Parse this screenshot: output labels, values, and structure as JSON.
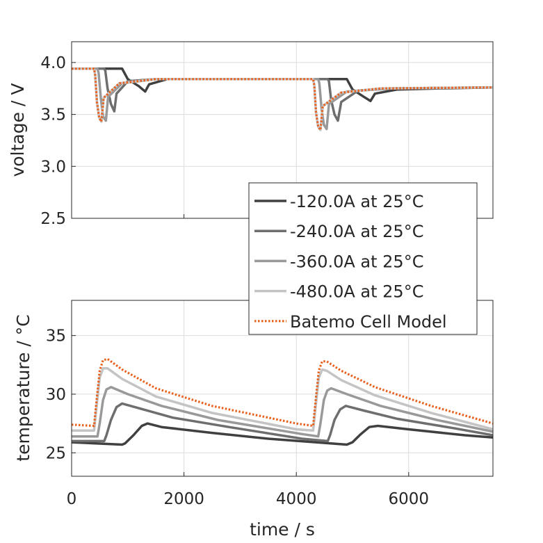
{
  "chart_data": [
    {
      "type": "line",
      "ylabel": "voltage / V",
      "xlim": [
        0,
        7500
      ],
      "ylim": [
        2.5,
        4.2
      ],
      "yticks": [
        "2.5",
        "3.0",
        "3.5",
        "4.0"
      ],
      "grid": true,
      "legend": {
        "placement": "lower-right",
        "entries": [
          {
            "label": "-120.0A at 25°C",
            "color": "#404040",
            "style": "solid"
          },
          {
            "label": "-240.0A at 25°C",
            "color": "#6e6e6e",
            "style": "solid"
          },
          {
            "label": "-360.0A at 25°C",
            "color": "#999999",
            "style": "solid"
          },
          {
            "label": "-480.0A at 25°C",
            "color": "#c4c4c4",
            "style": "solid"
          },
          {
            "label": "Batemo Cell Model",
            "color": "#e8601c",
            "style": "dotted"
          }
        ]
      },
      "series": [
        {
          "name": "-120.0A at 25°C",
          "x": [
            0,
            900,
            920,
            1000,
            1200,
            1310,
            1380,
            1700,
            2500,
            4000,
            4900,
            4920,
            5000,
            5200,
            5320,
            5400,
            5800,
            6500,
            7500
          ],
          "y": [
            3.94,
            3.94,
            3.92,
            3.84,
            3.77,
            3.72,
            3.79,
            3.84,
            3.84,
            3.84,
            3.84,
            3.82,
            3.74,
            3.67,
            3.63,
            3.7,
            3.74,
            3.75,
            3.76
          ]
        },
        {
          "name": "-240.0A at 25°C",
          "x": [
            0,
            580,
            600,
            640,
            700,
            760,
            800,
            1000,
            1500,
            2500,
            4200,
            4560,
            4580,
            4620,
            4680,
            4740,
            4800,
            5100,
            5700,
            7500
          ],
          "y": [
            3.94,
            3.94,
            3.92,
            3.75,
            3.6,
            3.53,
            3.7,
            3.82,
            3.84,
            3.84,
            3.84,
            3.84,
            3.82,
            3.64,
            3.5,
            3.44,
            3.62,
            3.73,
            3.75,
            3.76
          ]
        },
        {
          "name": "-360.0A at 25°C",
          "x": [
            0,
            460,
            480,
            520,
            560,
            610,
            650,
            900,
            1500,
            2500,
            4200,
            4390,
            4410,
            4450,
            4490,
            4540,
            4580,
            4900,
            5600,
            7500
          ],
          "y": [
            3.94,
            3.94,
            3.9,
            3.66,
            3.48,
            3.44,
            3.67,
            3.8,
            3.84,
            3.84,
            3.84,
            3.84,
            3.8,
            3.55,
            3.4,
            3.36,
            3.6,
            3.72,
            3.75,
            3.76
          ]
        },
        {
          "name": "-480.0A at 25°C",
          "x": [
            0,
            400,
            420,
            450,
            490,
            530,
            570,
            850,
            1500,
            2500,
            4100,
            4300,
            4320,
            4350,
            4390,
            4430,
            4470,
            4800,
            5500,
            7500
          ],
          "y": [
            3.94,
            3.94,
            3.88,
            3.62,
            3.47,
            3.43,
            3.66,
            3.8,
            3.84,
            3.84,
            3.84,
            3.84,
            3.78,
            3.52,
            3.38,
            3.35,
            3.58,
            3.71,
            3.75,
            3.76
          ]
        },
        {
          "name": "Batemo Cell Model",
          "x": [
            0,
            400,
            420,
            450,
            490,
            530,
            570,
            850,
            1500,
            2500,
            4100,
            4300,
            4320,
            4350,
            4390,
            4430,
            4470,
            4800,
            5500,
            7500
          ],
          "y": [
            3.94,
            3.94,
            3.88,
            3.62,
            3.47,
            3.43,
            3.66,
            3.8,
            3.84,
            3.84,
            3.84,
            3.84,
            3.78,
            3.52,
            3.38,
            3.35,
            3.58,
            3.71,
            3.75,
            3.76
          ]
        }
      ]
    },
    {
      "type": "line",
      "xlabel": "time / s",
      "ylabel": "temperature / °C",
      "xlim": [
        0,
        7500
      ],
      "ylim": [
        23,
        38
      ],
      "xticks": [
        "0",
        "2000",
        "4000",
        "6000"
      ],
      "yticks": [
        "25",
        "30",
        "35"
      ],
      "grid": true,
      "series": [
        {
          "name": "-120.0A at 25°C",
          "x": [
            0,
            900,
            950,
            1100,
            1250,
            1350,
            1600,
            2500,
            3500,
            4900,
            5000,
            5150,
            5300,
            5450,
            6000,
            7000,
            7500
          ],
          "y": [
            25.9,
            25.7,
            25.8,
            26.5,
            27.3,
            27.5,
            27.2,
            26.7,
            26.2,
            25.7,
            25.9,
            26.6,
            27.2,
            27.3,
            27.0,
            26.5,
            26.3
          ]
        },
        {
          "name": "-240.0A at 25°C",
          "x": [
            0,
            580,
            620,
            700,
            800,
            900,
            1200,
            1800,
            2800,
            4100,
            4560,
            4600,
            4680,
            4780,
            4880,
            5200,
            5800,
            6800,
            7500
          ],
          "y": [
            26.0,
            26.0,
            26.5,
            27.8,
            28.9,
            29.2,
            28.8,
            28.0,
            27.2,
            26.2,
            26.0,
            26.5,
            27.8,
            28.7,
            29.0,
            28.6,
            27.9,
            27.1,
            26.5
          ]
        },
        {
          "name": "-360.0A at 25°C",
          "x": [
            0,
            460,
            500,
            560,
            620,
            700,
            1000,
            1600,
            2600,
            4100,
            4390,
            4430,
            4490,
            4550,
            4620,
            4900,
            5500,
            6500,
            7500
          ],
          "y": [
            26.4,
            26.4,
            27.5,
            29.5,
            30.4,
            30.6,
            30.0,
            29.0,
            27.8,
            26.6,
            26.4,
            27.5,
            29.5,
            30.3,
            30.5,
            30.0,
            29.0,
            27.8,
            26.8
          ]
        },
        {
          "name": "-480.0A at 25°C",
          "x": [
            0,
            400,
            440,
            500,
            560,
            640,
            900,
            1500,
            2500,
            4000,
            4300,
            4340,
            4400,
            4460,
            4540,
            4800,
            5400,
            6400,
            7500
          ],
          "y": [
            26.9,
            26.9,
            28.8,
            31.4,
            32.2,
            32.2,
            31.3,
            29.8,
            28.4,
            27.0,
            26.9,
            28.8,
            31.4,
            32.1,
            32.0,
            31.2,
            29.9,
            28.4,
            27.0
          ]
        },
        {
          "name": "Batemo Cell Model",
          "x": [
            0,
            400,
            440,
            500,
            560,
            640,
            900,
            1500,
            2500,
            4000,
            4300,
            4340,
            4400,
            4460,
            4540,
            4800,
            5400,
            6400,
            7500
          ],
          "y": [
            27.4,
            27.3,
            29.3,
            32.0,
            32.9,
            33.0,
            32.1,
            30.5,
            29.0,
            27.5,
            27.3,
            29.3,
            32.0,
            32.8,
            32.8,
            32.0,
            30.6,
            29.0,
            27.5
          ]
        }
      ]
    }
  ]
}
